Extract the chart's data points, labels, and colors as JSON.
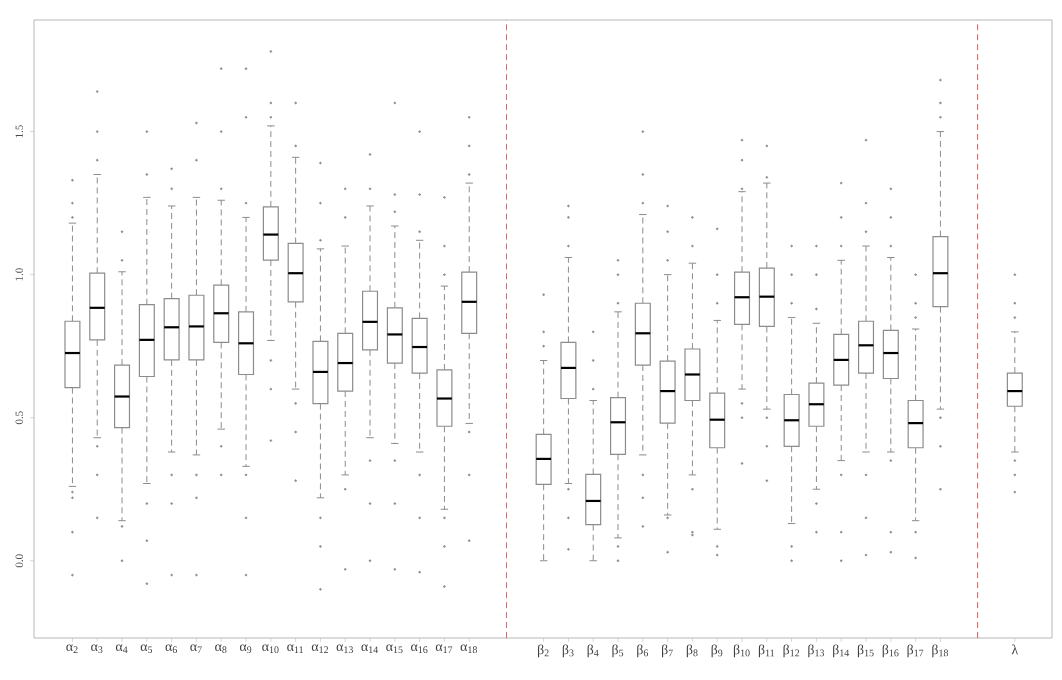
{
  "chart_data": {
    "type": "box",
    "categories": [
      "α$_{2}$",
      "α$_{3}$",
      "α$_{4}$",
      "α$_{5}$",
      "α$_{6}$",
      "α$_{7}$",
      "α$_{8}$",
      "α$_{9}$",
      "α$_{10}$",
      "α$_{11}$",
      "α$_{12}$",
      "α$_{13}$",
      "α$_{14}$",
      "α$_{15}$",
      "α$_{16}$",
      "α$_{17}$",
      "α$_{18}$",
      null,
      null,
      "β$_{2}$",
      "β$_{3}$",
      "β$_{4}$",
      "β$_{5}$",
      "β$_{6}$",
      "β$_{7}$",
      "β$_{8}$",
      "β$_{9}$",
      "β$_{10}$",
      "β$_{11}$",
      "β$_{12}$",
      "β$_{13}$",
      "β$_{14}$",
      "β$_{15}$",
      "β$_{16}$",
      "β$_{17}$",
      "β$_{18}$",
      null,
      null,
      "λ"
    ],
    "series": [
      {
        "color": "#8c8c8c",
        "boxes": [
          {
            "low": 0.26,
            "q1": 0.605,
            "median": 0.726,
            "q3": 0.837,
            "high": 1.18,
            "outliers": [
              1.2,
              1.25,
              1.33,
              0.24,
              0.22,
              0.1,
              -0.05
            ]
          },
          {
            "low": 0.43,
            "q1": 0.772,
            "median": 0.884,
            "q3": 1.005,
            "high": 1.35,
            "outliers": [
              1.4,
              1.5,
              1.64,
              0.4,
              0.3,
              0.15
            ]
          },
          {
            "low": 0.14,
            "q1": 0.465,
            "median": 0.574,
            "q3": 0.684,
            "high": 1.01,
            "outliers": [
              1.05,
              1.15,
              0.12,
              0.0
            ]
          },
          {
            "low": 0.27,
            "q1": 0.644,
            "median": 0.772,
            "q3": 0.895,
            "high": 1.27,
            "outliers": [
              1.35,
              1.5,
              0.2,
              0.07,
              -0.08
            ]
          },
          {
            "low": 0.38,
            "q1": 0.702,
            "median": 0.816,
            "q3": 0.916,
            "high": 1.24,
            "outliers": [
              1.3,
              1.37,
              0.3,
              0.2,
              -0.05
            ]
          },
          {
            "low": 0.37,
            "q1": 0.702,
            "median": 0.819,
            "q3": 0.928,
            "high": 1.27,
            "outliers": [
              1.4,
              1.53,
              0.3,
              0.22,
              -0.05
            ]
          },
          {
            "low": 0.46,
            "q1": 0.763,
            "median": 0.865,
            "q3": 0.963,
            "high": 1.26,
            "outliers": [
              1.3,
              1.5,
              1.72,
              0.4,
              0.3
            ]
          },
          {
            "low": 0.33,
            "q1": 0.651,
            "median": 0.76,
            "q3": 0.87,
            "high": 1.2,
            "outliers": [
              1.25,
              1.55,
              1.72,
              0.3,
              0.15,
              -0.05
            ]
          },
          {
            "low": 0.77,
            "q1": 1.051,
            "median": 1.14,
            "q3": 1.237,
            "high": 1.52,
            "outliers": [
              1.55,
              1.6,
              1.78,
              0.7,
              0.6,
              0.42
            ]
          },
          {
            "low": 0.6,
            "q1": 0.905,
            "median": 1.005,
            "q3": 1.109,
            "high": 1.41,
            "outliers": [
              1.45,
              1.6,
              0.55,
              0.45,
              0.28
            ]
          },
          {
            "low": 0.22,
            "q1": 0.549,
            "median": 0.66,
            "q3": 0.767,
            "high": 1.09,
            "outliers": [
              1.12,
              1.25,
              1.39,
              0.15,
              0.05,
              -0.1
            ]
          },
          {
            "low": 0.3,
            "q1": 0.593,
            "median": 0.691,
            "q3": 0.795,
            "high": 1.1,
            "outliers": [
              1.2,
              1.3,
              0.25,
              -0.03
            ]
          },
          {
            "low": 0.43,
            "q1": 0.737,
            "median": 0.835,
            "q3": 0.942,
            "high": 1.24,
            "outliers": [
              1.3,
              1.42,
              0.35,
              0.2,
              0.0
            ]
          },
          {
            "low": 0.41,
            "q1": 0.691,
            "median": 0.791,
            "q3": 0.884,
            "high": 1.17,
            "outliers": [
              1.22,
              1.28,
              1.6,
              0.35,
              0.2,
              -0.03
            ]
          },
          {
            "low": 0.38,
            "q1": 0.656,
            "median": 0.747,
            "q3": 0.847,
            "high": 1.12,
            "outliers": [
              1.15,
              1.28,
              1.5,
              0.3,
              0.15,
              -0.04
            ]
          },
          {
            "low": 0.18,
            "q1": 0.47,
            "median": 0.567,
            "q3": 0.667,
            "high": 0.96,
            "outliers": [
              1.0,
              1.1,
              1.27,
              0.15,
              0.05,
              -0.09
            ]
          },
          {
            "low": 0.48,
            "q1": 0.795,
            "median": 0.905,
            "q3": 1.009,
            "high": 1.32,
            "outliers": [
              1.35,
              1.45,
              1.55,
              0.45,
              0.3,
              0.07
            ]
          },
          null,
          null,
          {
            "low": 0.0,
            "q1": 0.267,
            "median": 0.356,
            "q3": 0.442,
            "high": 0.7,
            "outliers": [
              0.75,
              0.8,
              0.93
            ]
          },
          {
            "low": 0.27,
            "q1": 0.567,
            "median": 0.674,
            "q3": 0.763,
            "high": 1.06,
            "outliers": [
              1.1,
              1.2,
              1.24,
              0.25,
              0.15,
              0.04
            ]
          },
          {
            "low": 0.0,
            "q1": 0.126,
            "median": 0.209,
            "q3": 0.302,
            "high": 0.56,
            "outliers": [
              0.6,
              0.7,
              0.8
            ]
          },
          {
            "low": 0.08,
            "q1": 0.372,
            "median": 0.484,
            "q3": 0.57,
            "high": 0.87,
            "outliers": [
              0.9,
              1.0,
              1.05,
              0.05,
              0.0
            ]
          },
          {
            "low": 0.37,
            "q1": 0.684,
            "median": 0.795,
            "q3": 0.9,
            "high": 1.21,
            "outliers": [
              1.25,
              1.35,
              1.5,
              0.3,
              0.22,
              0.12
            ]
          },
          {
            "low": 0.16,
            "q1": 0.481,
            "median": 0.593,
            "q3": 0.698,
            "high": 1.0,
            "outliers": [
              1.05,
              1.15,
              1.24,
              0.15,
              0.03
            ]
          },
          {
            "low": 0.3,
            "q1": 0.56,
            "median": 0.651,
            "q3": 0.74,
            "high": 1.04,
            "outliers": [
              1.1,
              1.2,
              0.25,
              0.1,
              0.09
            ]
          },
          {
            "low": 0.11,
            "q1": 0.395,
            "median": 0.493,
            "q3": 0.586,
            "high": 0.84,
            "outliers": [
              0.9,
              1.0,
              1.16,
              0.05,
              0.02
            ]
          },
          {
            "low": 0.6,
            "q1": 0.826,
            "median": 0.921,
            "q3": 1.009,
            "high": 1.29,
            "outliers": [
              1.3,
              1.4,
              1.47,
              0.55,
              0.5,
              0.34
            ]
          },
          {
            "low": 0.53,
            "q1": 0.819,
            "median": 0.923,
            "q3": 1.023,
            "high": 1.32,
            "outliers": [
              1.34,
              1.45,
              0.5,
              0.4,
              0.28
            ]
          },
          {
            "low": 0.13,
            "q1": 0.4,
            "median": 0.491,
            "q3": 0.581,
            "high": 0.85,
            "outliers": [
              0.9,
              1.0,
              1.1,
              0.05,
              0.0
            ]
          },
          {
            "low": 0.25,
            "q1": 0.47,
            "median": 0.547,
            "q3": 0.621,
            "high": 0.83,
            "outliers": [
              0.88,
              1.0,
              1.1,
              0.2,
              0.1
            ]
          },
          {
            "low": 0.35,
            "q1": 0.614,
            "median": 0.702,
            "q3": 0.791,
            "high": 1.05,
            "outliers": [
              1.1,
              1.2,
              1.32,
              0.3,
              0.1,
              0.0
            ]
          },
          {
            "low": 0.38,
            "q1": 0.656,
            "median": 0.753,
            "q3": 0.837,
            "high": 1.1,
            "outliers": [
              1.15,
              1.25,
              1.47,
              0.3,
              0.15,
              0.02
            ]
          },
          {
            "low": 0.38,
            "q1": 0.637,
            "median": 0.726,
            "q3": 0.805,
            "high": 1.06,
            "outliers": [
              1.1,
              1.2,
              1.3,
              0.35,
              0.1,
              0.03
            ]
          },
          {
            "low": 0.14,
            "q1": 0.395,
            "median": 0.481,
            "q3": 0.56,
            "high": 0.81,
            "outliers": [
              0.85,
              0.9,
              1.0,
              0.1,
              0.01
            ]
          },
          {
            "low": 0.53,
            "q1": 0.888,
            "median": 1.005,
            "q3": 1.133,
            "high": 1.5,
            "outliers": [
              1.55,
              1.6,
              1.68,
              0.5,
              0.4,
              0.25
            ]
          },
          null,
          null,
          {
            "low": 0.38,
            "q1": 0.54,
            "median": 0.593,
            "q3": 0.656,
            "high": 0.8,
            "outliers": [
              0.85,
              0.9,
              1.0,
              0.35,
              0.3,
              0.24
            ]
          }
        ]
      }
    ],
    "ylim": [
      -0.27,
      1.89
    ],
    "yticks": [
      {
        "value": 0,
        "label": "0.0"
      },
      {
        "value": 0.5,
        "label": "0.5"
      },
      {
        "value": 1,
        "label": "1.0"
      },
      {
        "value": 1.5,
        "label": "1.5"
      }
    ],
    "grid": false
  }
}
